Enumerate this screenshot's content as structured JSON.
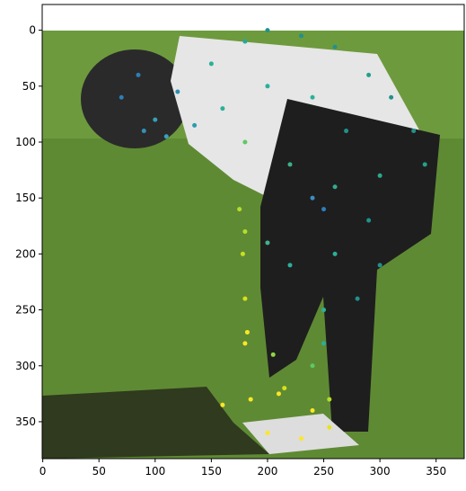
{
  "chart_data": {
    "type": "scatter",
    "xlim": [
      -0.5,
      375
    ],
    "ylim": [
      383,
      -23
    ],
    "xticks": [
      0,
      50,
      100,
      150,
      200,
      250,
      300,
      350
    ],
    "yticks": [
      0,
      50,
      100,
      150,
      200,
      250,
      300,
      350
    ],
    "x": [
      70,
      85,
      100,
      120,
      110,
      135,
      90,
      150,
      180,
      200,
      230,
      260,
      290,
      310,
      330,
      340,
      300,
      260,
      220,
      180,
      160,
      240,
      270,
      200,
      240,
      250,
      180,
      200,
      220,
      260,
      290,
      300,
      280,
      250,
      175,
      178,
      180,
      182,
      205,
      215,
      240,
      255,
      250,
      160,
      185,
      210,
      240,
      200,
      230,
      255,
      180
    ],
    "y": [
      60,
      40,
      80,
      55,
      95,
      85,
      90,
      30,
      10,
      0,
      5,
      15,
      40,
      60,
      90,
      120,
      130,
      140,
      120,
      100,
      70,
      60,
      90,
      50,
      150,
      160,
      180,
      190,
      210,
      200,
      170,
      210,
      240,
      250,
      160,
      200,
      240,
      270,
      290,
      320,
      300,
      330,
      280,
      335,
      330,
      325,
      340,
      360,
      365,
      355,
      280
    ],
    "colors": [
      "#2c7fb8",
      "#2c7fb8",
      "#35a0b8",
      "#2c8fb0",
      "#3b9fc0",
      "#2a9cae",
      "#3390b8",
      "#2ab09a",
      "#26a89a",
      "#21918c",
      "#21918c",
      "#21918c",
      "#21a08c",
      "#21918c",
      "#21918c",
      "#22a28a",
      "#2aa88a",
      "#33aa90",
      "#3cb08a",
      "#5ec962",
      "#2ab09a",
      "#2ab09a",
      "#21918c",
      "#2ab09a",
      "#3b8fc0",
      "#2c7fb8",
      "#b5de2b",
      "#45b090",
      "#2ab09a",
      "#2ab09a",
      "#21918c",
      "#21918c",
      "#21918c",
      "#2ab09a",
      "#b5de2b",
      "#c8e020",
      "#d8e219",
      "#fde725",
      "#8fd744",
      "#d8e219",
      "#5ec962",
      "#b5de2b",
      "#2ab09a",
      "#fde725",
      "#fde725",
      "#fde725",
      "#fde725",
      "#fde725",
      "#fde725",
      "#e8e419",
      "#fde725"
    ]
  }
}
